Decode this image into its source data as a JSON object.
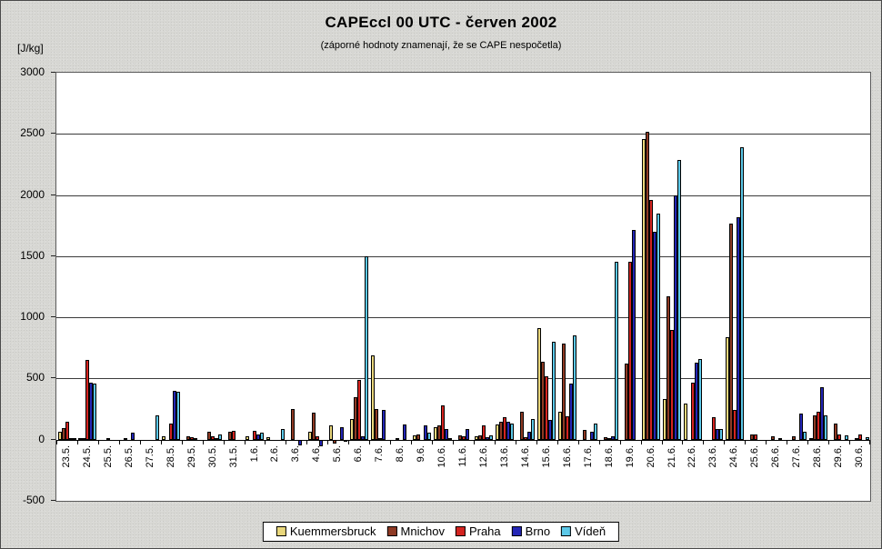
{
  "title": "CAPEccl 00 UTC - červen 2002",
  "subtitle": "(záporné hodnoty znamenají, že se CAPE nespočetla)",
  "y_unit": "[J/kg]",
  "colors": {
    "background": "#d7d7d3",
    "plot_background": "#ffffff",
    "gridline": "#3a3a3a",
    "kuemmersbruck": "#e9d77c",
    "mnichov": "#8e3a24",
    "praha": "#d42420",
    "brno": "#2426b6",
    "viden": "#5cc8e8"
  },
  "chart_data": {
    "type": "bar",
    "title": "CAPEccl 00 UTC - červen 2002",
    "subtitle": "(záporné hodnoty znamenají, že se CAPE nespočetla)",
    "ylabel": "[J/kg]",
    "ylim": [
      -500,
      3000
    ],
    "yticks": [
      3000,
      2500,
      2000,
      1500,
      1000,
      500,
      0,
      -500
    ],
    "grid": true,
    "legend_position": "bottom",
    "categories": [
      "23.5.",
      "24.5.",
      "25.5.",
      "26.5.",
      "27.5.",
      "28.5.",
      "29.5.",
      "30.5.",
      "31.5.",
      "1.6.",
      "2.6.",
      "3.6.",
      "4.6.",
      "5.6.",
      "6.6.",
      "7.6.",
      "8.6.",
      "9.6.",
      "10.6.",
      "11.6.",
      "12.6.",
      "13.6.",
      "14.6.",
      "15.6.",
      "16.6.",
      "17.6.",
      "18.6.",
      "19.6.",
      "20.6.",
      "21.6.",
      "22.6.",
      "23.6.",
      "24.6.",
      "25.6.",
      "26.6.",
      "27.6.",
      "28.6.",
      "29.6.",
      "30.6."
    ],
    "series": [
      {
        "name": "Kuemmersbruck",
        "color": "#e9d77c",
        "values": [
          65,
          10,
          0,
          0,
          0,
          25,
          0,
          0,
          0,
          25,
          20,
          0,
          65,
          120,
          170,
          690,
          0,
          35,
          100,
          0,
          25,
          125,
          0,
          915,
          230,
          0,
          0,
          0,
          2455,
          330,
          295,
          0,
          835,
          0,
          0,
          0,
          10,
          0,
          0
        ]
      },
      {
        "name": "Mnichov",
        "color": "#8e3a24",
        "values": [
          95,
          15,
          0,
          10,
          0,
          0,
          25,
          65,
          65,
          0,
          0,
          250,
          220,
          -30,
          345,
          250,
          10,
          45,
          115,
          35,
          35,
          145,
          230,
          635,
          785,
          80,
          20,
          620,
          2520,
          1170,
          0,
          0,
          1770,
          40,
          30,
          25,
          195,
          130,
          10
        ]
      },
      {
        "name": "Praha",
        "color": "#d42420",
        "values": [
          145,
          655,
          15,
          0,
          0,
          130,
          20,
          30,
          70,
          70,
          0,
          0,
          25,
          0,
          485,
          15,
          0,
          0,
          280,
          25,
          115,
          185,
          20,
          520,
          190,
          0,
          15,
          1455,
          1960,
          900,
          465,
          180,
          240,
          40,
          0,
          0,
          225,
          45,
          45
        ]
      },
      {
        "name": "Brno",
        "color": "#2426b6",
        "values": [
          15,
          465,
          0,
          60,
          0,
          400,
          10,
          15,
          0,
          40,
          0,
          -50,
          -55,
          100,
          30,
          245,
          125,
          115,
          90,
          85,
          20,
          145,
          65,
          165,
          455,
          65,
          25,
          1715,
          1700,
          2000,
          630,
          90,
          1815,
          0,
          15,
          210,
          430,
          0,
          0
        ]
      },
      {
        "name": "Vídeň",
        "color": "#5cc8e8",
        "values": [
          10,
          460,
          0,
          0,
          200,
          395,
          0,
          40,
          0,
          55,
          85,
          0,
          0,
          -20,
          1500,
          0,
          0,
          60,
          10,
          0,
          35,
          130,
          170,
          800,
          850,
          130,
          1455,
          0,
          1845,
          2290,
          660,
          90,
          2390,
          0,
          0,
          65,
          200,
          35,
          20
        ]
      }
    ]
  }
}
